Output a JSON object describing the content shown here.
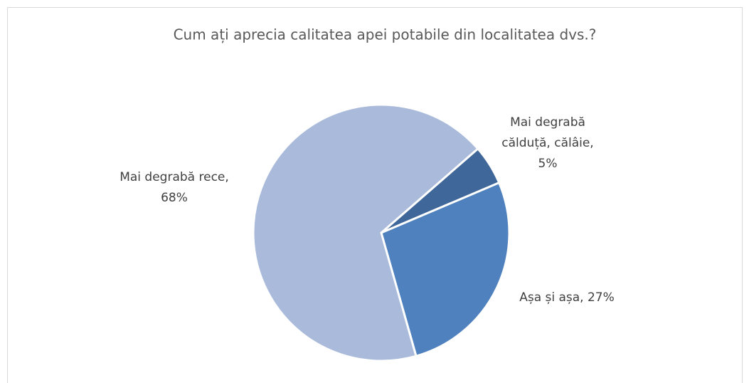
{
  "chart_data": {
    "type": "pie",
    "title": "Cum ați aprecia calitatea apei potabile din localitatea dvs.?",
    "values": [
      5,
      27,
      68
    ],
    "value_labels": [
      [
        "Mai degrabă",
        "călduță, călâie,",
        "5%"
      ],
      [
        "Așa și așa, 27%"
      ],
      [
        "Mai degrabă rece,",
        "68%"
      ]
    ],
    "colors": [
      "#3f6799",
      "#4e81bd",
      "#a9badb"
    ]
  }
}
